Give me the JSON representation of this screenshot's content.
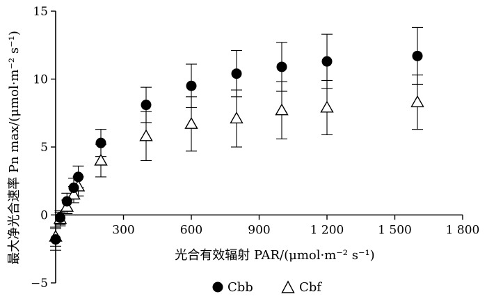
{
  "chart_data": {
    "type": "scatter",
    "xlabel": "光合有效辐射 PAR/(μmol·m⁻² s⁻¹)",
    "ylabel": "最大净光合速率 Pn max/(μmol·m⁻² s⁻¹)",
    "xlim": [
      0,
      1800
    ],
    "ylim": [
      -5,
      15
    ],
    "xticks": [
      0,
      300,
      600,
      900,
      1200,
      1500,
      1800
    ],
    "xtick_labels": [
      "0",
      "300",
      "600",
      "900",
      "1 200",
      "1 500",
      "1 800"
    ],
    "yticks": [
      -5,
      0,
      5,
      10,
      15
    ],
    "ytick_labels": [
      "−5",
      "0",
      "5",
      "10",
      "15"
    ],
    "legend_position": "bottom",
    "series": [
      {
        "name": "Cbb",
        "marker": "filled-circle",
        "color": "#000000",
        "x": [
          0,
          20,
          50,
          80,
          100,
          200,
          400,
          600,
          800,
          1000,
          1200,
          1600
        ],
        "y": [
          -1.8,
          -0.2,
          1.0,
          2.0,
          2.8,
          5.3,
          8.1,
          9.5,
          10.4,
          10.9,
          11.3,
          11.7
        ],
        "err": [
          0.8,
          0.5,
          0.6,
          0.7,
          0.8,
          1.0,
          1.3,
          1.6,
          1.7,
          1.8,
          2.0,
          2.1
        ]
      },
      {
        "name": "Cbf",
        "marker": "open-triangle",
        "color": "#000000",
        "x": [
          0,
          20,
          50,
          80,
          100,
          200,
          400,
          600,
          800,
          1000,
          1200,
          1600
        ],
        "y": [
          -1.6,
          -0.3,
          0.6,
          1.5,
          2.1,
          4.0,
          5.8,
          6.7,
          7.1,
          7.7,
          7.9,
          8.3
        ],
        "err": [
          0.7,
          0.5,
          0.5,
          0.6,
          0.7,
          1.2,
          1.8,
          2.0,
          2.1,
          2.1,
          2.0,
          2.0
        ]
      }
    ]
  }
}
